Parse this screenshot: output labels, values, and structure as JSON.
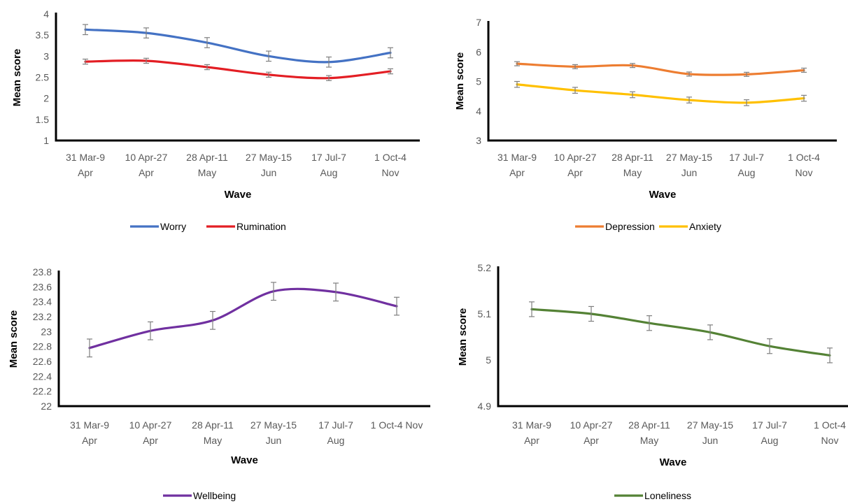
{
  "chart_data": [
    {
      "type": "line",
      "categories": [
        [
          "31 Mar-9",
          "Apr"
        ],
        [
          "10 Apr-27",
          "Apr"
        ],
        [
          "28 Apr-11",
          "May"
        ],
        [
          "27 May-15",
          "Jun"
        ],
        [
          "17 Jul-7",
          "Aug"
        ],
        [
          "1 Oct-4",
          "Nov"
        ]
      ],
      "series": [
        {
          "name": "Worry",
          "color": "#4472C4",
          "values": [
            3.63,
            3.55,
            3.32,
            3.0,
            2.86,
            3.08
          ],
          "errors": [
            0.12,
            0.12,
            0.12,
            0.12,
            0.12,
            0.12
          ]
        },
        {
          "name": "Rumination",
          "color": "#E31E24",
          "values": [
            2.87,
            2.89,
            2.74,
            2.56,
            2.48,
            2.64
          ],
          "errors": [
            0.06,
            0.06,
            0.06,
            0.06,
            0.06,
            0.06
          ]
        }
      ],
      "xlabel": "Wave",
      "ylabel": "Mean score",
      "ylim": [
        1,
        4
      ],
      "yticks": [
        "1",
        "1.5",
        "2",
        "2.5",
        "3",
        "3.5",
        "4"
      ],
      "grid": false,
      "legend": "bottom"
    },
    {
      "type": "line",
      "categories": [
        [
          "31 Mar-9",
          "Apr"
        ],
        [
          "10 Apr-27",
          "Apr"
        ],
        [
          "28 Apr-11",
          "May"
        ],
        [
          "27 May-15",
          "Jun"
        ],
        [
          "17 Jul-7",
          "Aug"
        ],
        [
          "1 Oct-4",
          "Nov"
        ]
      ],
      "series": [
        {
          "name": "Depression",
          "color": "#ED7D31",
          "values": [
            5.6,
            5.5,
            5.54,
            5.25,
            5.24,
            5.38
          ],
          "errors": [
            0.07,
            0.07,
            0.07,
            0.07,
            0.07,
            0.07
          ]
        },
        {
          "name": "Anxiety",
          "color": "#FFC000",
          "values": [
            4.9,
            4.7,
            4.55,
            4.37,
            4.28,
            4.43
          ],
          "errors": [
            0.1,
            0.1,
            0.1,
            0.1,
            0.1,
            0.1
          ]
        }
      ],
      "xlabel": "Wave",
      "ylabel": "Mean score",
      "ylim": [
        3,
        7
      ],
      "yticks": [
        "3",
        "4",
        "5",
        "6",
        "7"
      ],
      "grid": false,
      "legend": "bottom"
    },
    {
      "type": "line",
      "categories": [
        [
          "31 Mar-9",
          "Apr"
        ],
        [
          "10 Apr-27",
          "Apr"
        ],
        [
          "28 Apr-11",
          "May"
        ],
        [
          "27 May-15",
          "Jun"
        ],
        [
          "17 Jul-7",
          "Aug"
        ],
        [
          "1 Oct-4 Nov",
          ""
        ]
      ],
      "series": [
        {
          "name": "Wellbeing",
          "color": "#7030A0",
          "values": [
            22.78,
            23.01,
            23.15,
            23.54,
            23.53,
            23.34
          ],
          "errors": [
            0.12,
            0.12,
            0.12,
            0.12,
            0.12,
            0.12
          ]
        }
      ],
      "xlabel": "Wave",
      "ylabel": "Mean score",
      "ylim": [
        22,
        23.8
      ],
      "yticks": [
        "22",
        "22.2",
        "22.4",
        "22.6",
        "22.8",
        "23",
        "23.2",
        "23.4",
        "23.6",
        "23.8"
      ],
      "grid": false,
      "legend": "bottom"
    },
    {
      "type": "line",
      "categories": [
        [
          "31 Mar-9",
          "Apr"
        ],
        [
          "10 Apr-27",
          "Apr"
        ],
        [
          "28 Apr-11",
          "May"
        ],
        [
          "27 May-15",
          "Jun"
        ],
        [
          "17 Jul-7",
          "Aug"
        ],
        [
          "1 Oct-4",
          "Nov"
        ]
      ],
      "series": [
        {
          "name": "Loneliness",
          "color": "#548235",
          "values": [
            5.11,
            5.1,
            5.08,
            5.06,
            5.03,
            5.01
          ],
          "errors": [
            0.016,
            0.016,
            0.016,
            0.016,
            0.016,
            0.016
          ]
        }
      ],
      "xlabel": "Wave",
      "ylabel": "Mean score",
      "ylim": [
        4.9,
        5.2
      ],
      "yticks": [
        "4.9",
        "5",
        "5.1",
        "5.2"
      ],
      "grid": false,
      "legend": "bottom"
    }
  ]
}
